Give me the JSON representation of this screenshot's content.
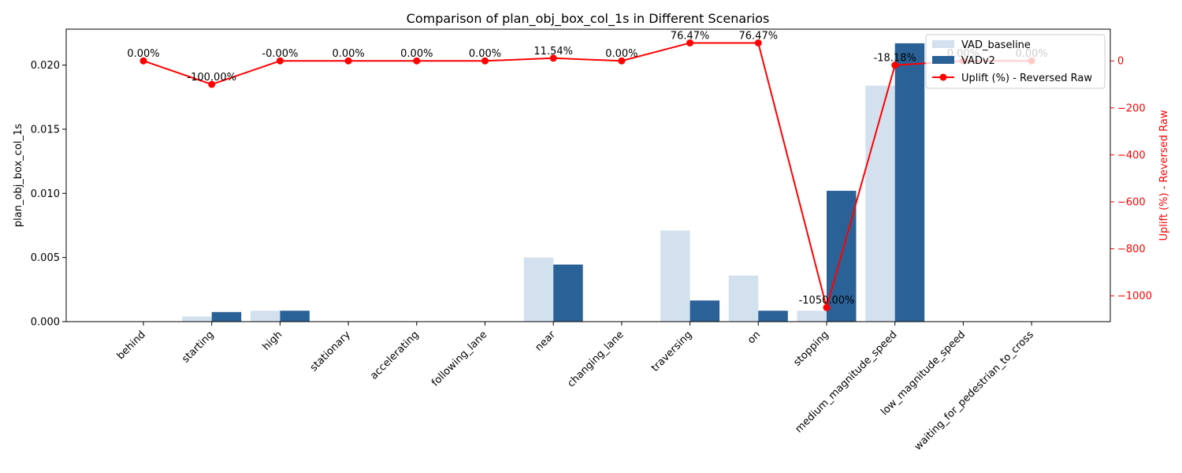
{
  "chart_data": {
    "type": "bar",
    "title": "Comparison of plan_obj_box_col_1s in Different Scenarios",
    "ylabel": "plan_obj_box_col_1s",
    "ylabel_right": "Uplift (%) - Reversed Raw",
    "ylim": [
      0,
      0.0228
    ],
    "ylim_right": [
      -1110,
      135
    ],
    "yticks": [
      "0.000",
      "0.005",
      "0.010",
      "0.015",
      "0.020"
    ],
    "yticks_right": [
      "0",
      "−200",
      "−400",
      "−600",
      "−800",
      "−1000"
    ],
    "categories": [
      "behind",
      "starting",
      "high",
      "stationary",
      "accelerating",
      "following_lane",
      "near",
      "changing_lane",
      "traversing",
      "on",
      "stopping",
      "medium_magnitude_speed",
      "low_magnitude_speed",
      "waiting_for_pedestrian_to_cross"
    ],
    "series": [
      {
        "name": "VAD_baseline",
        "color": "#d3e1ef",
        "values": [
          0,
          0.0004,
          0.00085,
          0,
          0,
          0,
          0.005,
          0,
          0.0071,
          0.0036,
          0.00085,
          0.0184,
          0,
          0
        ]
      },
      {
        "name": "VADv2",
        "color": "#2a6298",
        "values": [
          0,
          0.00075,
          0.00085,
          0,
          0,
          0,
          0.00445,
          0,
          0.00165,
          0.00085,
          0.0102,
          0.0217,
          0,
          0
        ]
      }
    ],
    "line_series": {
      "name": "Uplift (%) - Reversed Raw",
      "color": "#ff0000",
      "values": [
        0,
        -100,
        0,
        0,
        0,
        0,
        11.54,
        0,
        76.47,
        76.47,
        -1050,
        -18.18,
        0,
        0
      ],
      "labels": [
        "0.00%",
        "-100.00%",
        "-0.00%",
        "0.00%",
        "0.00%",
        "0.00%",
        "11.54%",
        "0.00%",
        "76.47%",
        "76.47%",
        "-1050.00%",
        "-18.18%",
        "0.00%",
        "0.00%"
      ]
    },
    "legend_position": "top-right",
    "grid": false
  }
}
